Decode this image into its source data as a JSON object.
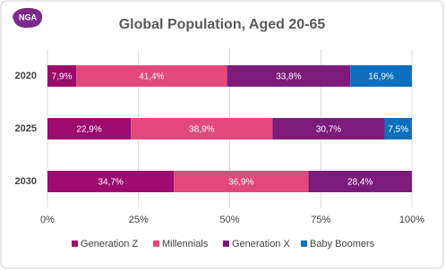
{
  "chart_data": {
    "type": "stacked-bar",
    "orientation": "horizontal",
    "logo": "NGA",
    "title": "Global Population, Aged 20-65",
    "categories": [
      "2020",
      "2025",
      "2030"
    ],
    "series": [
      {
        "name": "Generation Z",
        "color": "#9c0b6e",
        "values": [
          7.9,
          22.9,
          34.7
        ],
        "value_labels": [
          "7,9%",
          "22,9%",
          "34,7%"
        ]
      },
      {
        "name": "Millennials",
        "color": "#e2487c",
        "values": [
          41.4,
          38.9,
          36.9
        ],
        "value_labels": [
          "41,4%",
          "38,9%",
          "36,9%"
        ]
      },
      {
        "name": "Generation X",
        "color": "#7b1c7c",
        "values": [
          33.8,
          30.7,
          28.4
        ],
        "value_labels": [
          "33,8%",
          "30,7%",
          "28,4%"
        ]
      },
      {
        "name": "Baby Boomers",
        "color": "#0b6fbd",
        "values": [
          16.9,
          7.5,
          null
        ],
        "value_labels": [
          "16,9%",
          "7,5%",
          null
        ]
      }
    ],
    "xlim": [
      0,
      100
    ],
    "xticks": [
      {
        "value": 0,
        "label": "0%"
      },
      {
        "value": 25,
        "label": "25%"
      },
      {
        "value": 50,
        "label": "50%"
      },
      {
        "value": 75,
        "label": "75%"
      },
      {
        "value": 100,
        "label": "100%"
      }
    ],
    "grid": true,
    "legend": "bottom"
  }
}
